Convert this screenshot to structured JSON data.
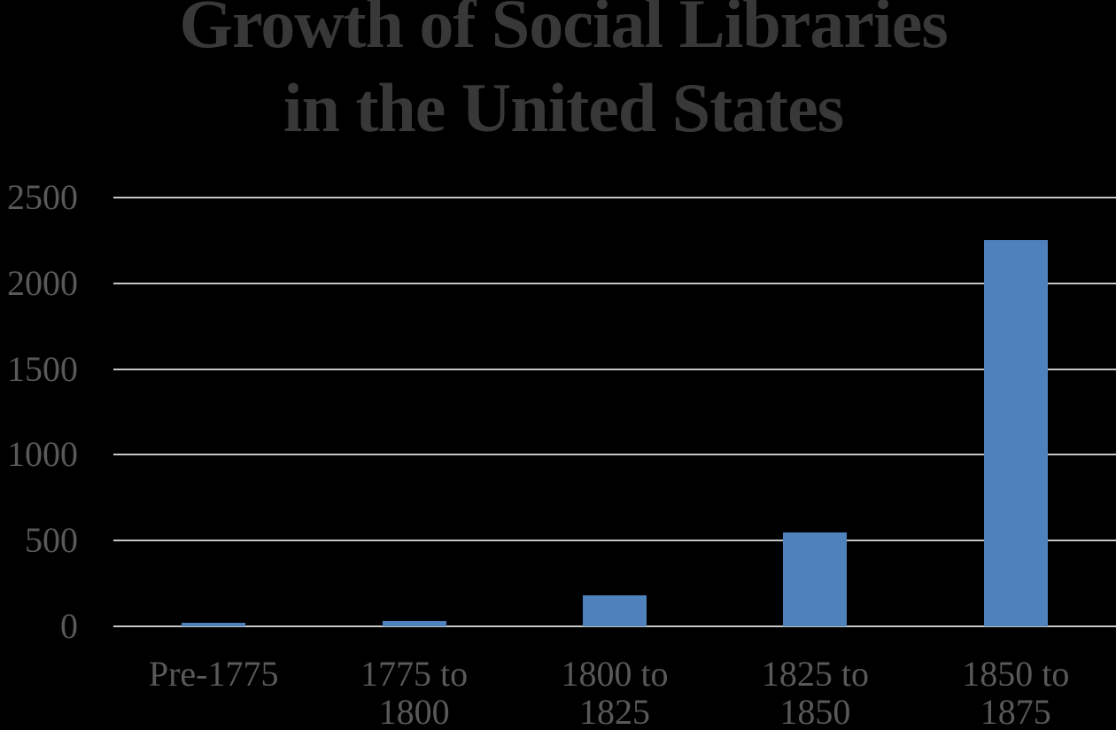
{
  "chart_data": {
    "type": "bar",
    "title": "Growth of Social Libraries in the United States",
    "title_lines": [
      "Growth of Social Libraries",
      "in the United States"
    ],
    "categories": [
      "Pre-1775",
      "1775 to\n1800",
      "1800 to\n1825",
      "1825 to\n1850",
      "1850 to\n1875"
    ],
    "values": [
      20,
      30,
      180,
      550,
      2250
    ],
    "xlabel": "",
    "ylabel": "",
    "ylim": [
      0,
      2500
    ],
    "yticks": [
      0,
      500,
      1000,
      1500,
      2000,
      2500
    ],
    "grid": "horizontal-only",
    "legend": "none",
    "colors": {
      "background": "#000000",
      "bar": "#4F81BD",
      "gridline": "#C6C6C6",
      "title_text": "#383838",
      "axis_text": "#595959"
    }
  }
}
